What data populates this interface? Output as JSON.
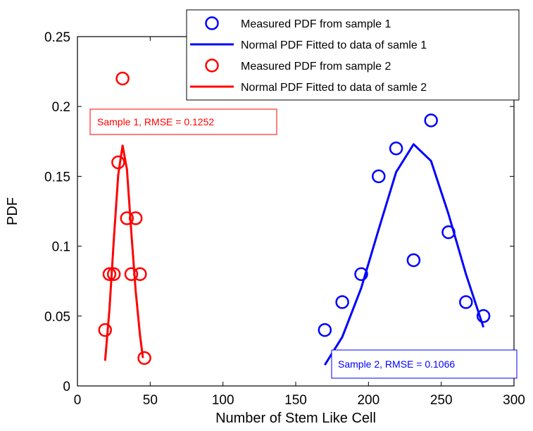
{
  "chart_data": {
    "type": "scatter",
    "title": "",
    "xlabel": "Number of Stem Like Cell",
    "ylabel": "PDF",
    "xlim": [
      0,
      300
    ],
    "ylim": [
      0,
      0.25
    ],
    "xticks": [
      0,
      50,
      100,
      150,
      200,
      250,
      300
    ],
    "yticks": [
      0,
      0.05,
      0.1,
      0.15,
      0.2,
      0.25
    ],
    "xtick_labels": [
      "0",
      "50",
      "100",
      "150",
      "200",
      "250",
      "300"
    ],
    "ytick_labels": [
      "0",
      "0.05",
      "0.1",
      "0.15",
      "0.2",
      "0.25"
    ],
    "grid": false,
    "legend_position": "top-right",
    "series": [
      {
        "name": "Measured PDF from sample 1",
        "kind": "markers",
        "color": "#0000ff",
        "x": [
          170,
          182,
          195,
          207,
          219,
          231,
          243,
          255,
          267,
          279
        ],
        "y": [
          0.04,
          0.06,
          0.08,
          0.15,
          0.17,
          0.09,
          0.19,
          0.11,
          0.06,
          0.05
        ]
      },
      {
        "name": "Normal PDF Fitted to data of samle 1",
        "kind": "line",
        "color": "#0000ff",
        "x": [
          170,
          182,
          195,
          207,
          219,
          231,
          243,
          255,
          267,
          279
        ],
        "y": [
          0.015,
          0.035,
          0.07,
          0.112,
          0.153,
          0.173,
          0.161,
          0.123,
          0.08,
          0.042
        ]
      },
      {
        "name": "Measured PDF from sample 2",
        "kind": "markers",
        "color": "#ff0000",
        "x": [
          19,
          22,
          25,
          28,
          31,
          34,
          37,
          40,
          43,
          46
        ],
        "y": [
          0.04,
          0.08,
          0.08,
          0.16,
          0.22,
          0.12,
          0.08,
          0.12,
          0.08,
          0.02
        ]
      },
      {
        "name": "Normal PDF Fitted  to data of samle 2",
        "kind": "line",
        "color": "#ff0000",
        "x": [
          19,
          22,
          25,
          28,
          31,
          34,
          37,
          40,
          43,
          45
        ],
        "y": [
          0.018,
          0.055,
          0.105,
          0.151,
          0.172,
          0.155,
          0.11,
          0.068,
          0.036,
          0.02
        ]
      }
    ],
    "annotations": [
      {
        "text": "Sample 1, RMSE = 0.1252",
        "color": "#ff0000"
      },
      {
        "text": "Sample 2, RMSE = 0.1066",
        "color": "#0000ff"
      }
    ]
  }
}
